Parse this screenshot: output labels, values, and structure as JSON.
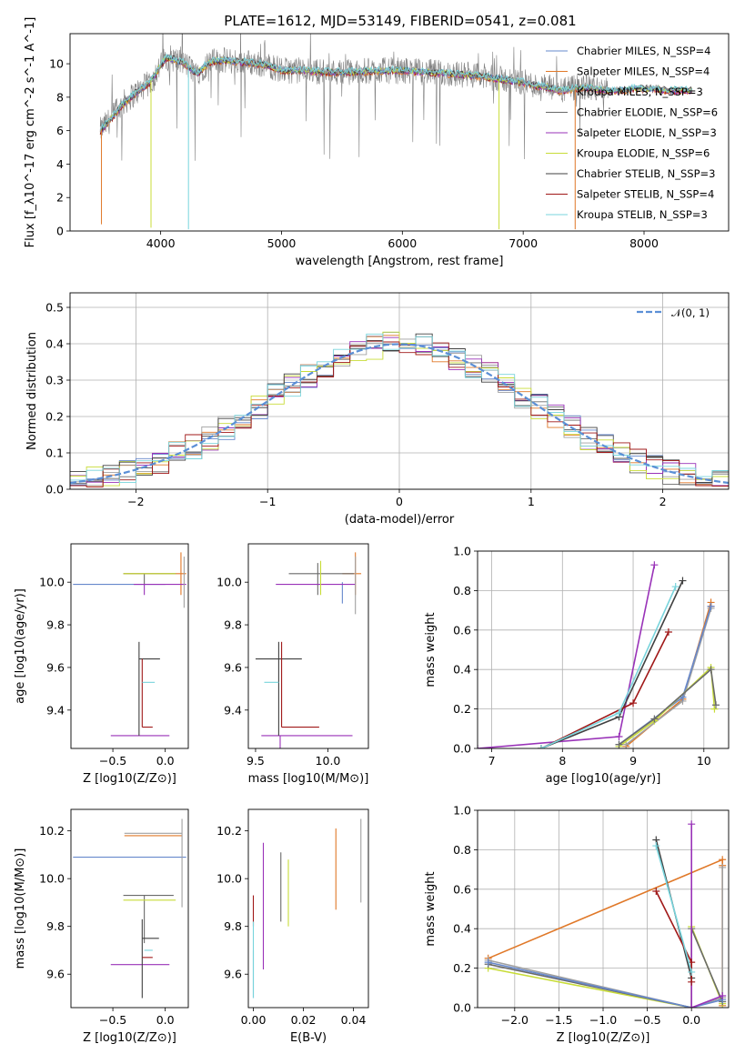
{
  "colors": [
    "#6688cc",
    "#e07828",
    "#a0a0a0",
    "#6a6a6a",
    "#9932b8",
    "#c8dc38",
    "#404040",
    "#a01818",
    "#78d4dc"
  ],
  "grey_spectrum_color": "#808080",
  "chart_data": [
    {
      "id": "spectrum",
      "type": "line",
      "title": "PLATE=1612, MJD=53149, FIBERID=0541, z=0.081",
      "xlabel": "wavelength [Angstrom, rest frame]",
      "ylabel": "Flux [f_λ10^-17 erg cm^-2 s^-1 A^-1]",
      "xlim": [
        3250,
        8700
      ],
      "ylim": [
        0,
        11.8
      ],
      "xticks": [
        "4000",
        "5000",
        "6000",
        "7000",
        "8000"
      ],
      "yticks": [
        "0",
        "2",
        "4",
        "6",
        "8",
        "10"
      ],
      "legend_position": "upper-right",
      "series": [
        {
          "name": "Chabrier MILES, N_SSP=4"
        },
        {
          "name": "Salpeter MILES, N_SSP=4"
        },
        {
          "name": "Kroupa MILES, N_SSP=3"
        },
        {
          "name": "Chabrier ELODIE, N_SSP=6"
        },
        {
          "name": "Salpeter ELODIE, N_SSP=3"
        },
        {
          "name": "Kroupa ELODIE, N_SSP=6"
        },
        {
          "name": "Chabrier STELIB, N_SSP=3"
        },
        {
          "name": "Salpeter STELIB, N_SSP=4"
        },
        {
          "name": "Kroupa STELIB, N_SSP=3"
        }
      ],
      "continuum": {
        "x": [
          3500,
          3550,
          3600,
          3700,
          3800,
          3900,
          4000,
          4050,
          4100,
          4200,
          4300,
          4400,
          4500,
          4700,
          4900,
          5000,
          5200,
          5400,
          5600,
          5800,
          6000,
          6200,
          6400,
          6600,
          6800,
          7000,
          7100,
          7200,
          7300,
          7400,
          7500,
          7600,
          7700,
          7800,
          7900,
          8000,
          8100,
          8200,
          8300,
          8400
        ],
        "y": [
          6.0,
          6.4,
          6.8,
          7.7,
          8.3,
          8.8,
          9.9,
          10.4,
          10.3,
          10.0,
          9.4,
          10.1,
          10.2,
          10.1,
          9.9,
          9.6,
          9.6,
          9.5,
          9.5,
          9.6,
          9.6,
          9.5,
          9.4,
          9.3,
          9.1,
          8.9,
          8.7,
          8.6,
          8.4,
          8.5,
          8.6,
          8.5,
          8.4,
          8.4,
          8.5,
          8.5,
          8.5,
          8.4,
          8.4,
          8.4
        ]
      },
      "grey_spectrum_range": [
        3500,
        7700
      ]
    },
    {
      "id": "residuals",
      "type": "histogram",
      "xlabel": "(data-model)/error",
      "ylabel": "Normed distribution",
      "xlim": [
        -2.5,
        2.5
      ],
      "ylim": [
        0,
        0.54
      ],
      "xticks": [
        "−2",
        "−1",
        "0",
        "1",
        "2"
      ],
      "yticks": [
        "0.0",
        "0.1",
        "0.2",
        "0.3",
        "0.4",
        "0.5"
      ],
      "grid": true,
      "legend": "𝒩(0, 1)",
      "legend_position": "upper-right",
      "bin_width": 0.125
    },
    {
      "id": "age_vs_Z",
      "type": "errorbar",
      "xlabel": "Z [log10(Z/Z⊙)]",
      "ylabel": "age  [log10(age/yr)]",
      "xlim": [
        -0.9,
        0.22
      ],
      "ylim": [
        9.22,
        10.18
      ],
      "xticks": [
        "−0.5",
        "0.0"
      ],
      "yticks": [
        "9.4",
        "9.6",
        "9.8",
        "10.0"
      ],
      "points": [
        {
          "x": -0.2,
          "y": 9.99,
          "xerr": [
            0.68,
            0.2
          ],
          "yerr": [
            0.0,
            0.0
          ],
          "c": 0
        },
        {
          "x": 0.15,
          "y": 10.04,
          "xerr": [
            0.55,
            0.05
          ],
          "yerr": [
            0.1,
            0.1
          ],
          "c": 1
        },
        {
          "x": -0.2,
          "y": 10.04,
          "xerr": [
            0.2,
            0.3
          ],
          "yerr": [
            0.05,
            0.0
          ],
          "c": 3
        },
        {
          "x": -0.2,
          "y": 9.99,
          "xerr": [
            0.1,
            0.4
          ],
          "yerr": [
            0.05,
            0.0
          ],
          "c": 4
        },
        {
          "x": -0.22,
          "y": 9.28,
          "xerr": [
            0.3,
            0.26
          ],
          "yerr": [
            0.0,
            0.0
          ],
          "c": 4
        },
        {
          "x": -0.25,
          "y": 9.64,
          "xerr": [
            0.0,
            0.2
          ],
          "yerr": [
            0.36,
            0.08
          ],
          "c": 6
        },
        {
          "x": -0.22,
          "y": 9.32,
          "xerr": [
            0.0,
            0.1
          ],
          "yerr": [
            0.0,
            0.32
          ],
          "c": 7
        },
        {
          "x": -0.22,
          "y": 9.53,
          "xerr": [
            0.0,
            0.12
          ],
          "yerr": [
            0.0,
            0.0
          ],
          "c": 8
        },
        {
          "x": 0.18,
          "y": 10.0,
          "xerr": [
            0.0,
            0.0
          ],
          "yerr": [
            0.12,
            0.12
          ],
          "c": 2
        },
        {
          "x": -0.2,
          "y": 10.04,
          "xerr": [
            0.2,
            0.3
          ],
          "yerr": [
            0.0,
            0.0
          ],
          "c": 5
        }
      ]
    },
    {
      "id": "age_vs_mass",
      "type": "errorbar",
      "xlabel": "mass [log10(M/M⊙)]",
      "ylabel": "",
      "xlim": [
        9.45,
        10.28
      ],
      "ylim": [
        9.22,
        10.18
      ],
      "xticks": [
        "9.5",
        "10.0"
      ],
      "yticks": [
        "9.4",
        "9.6",
        "9.8",
        "10.0"
      ],
      "points": [
        {
          "x": 10.1,
          "y": 10.0,
          "xerr": [
            0.0,
            0.0
          ],
          "yerr": [
            0.1,
            0.0
          ],
          "c": 0
        },
        {
          "x": 10.19,
          "y": 10.04,
          "xerr": [
            0.09,
            0.04
          ],
          "yerr": [
            0.1,
            0.1
          ],
          "c": 1
        },
        {
          "x": 9.93,
          "y": 10.04,
          "xerr": [
            0.2,
            0.25
          ],
          "yerr": [
            0.1,
            0.05
          ],
          "c": 3
        },
        {
          "x": 9.64,
          "y": 9.99,
          "xerr": [
            0.0,
            0.55
          ],
          "yerr": [
            0.0,
            0.0
          ],
          "c": 4
        },
        {
          "x": 9.67,
          "y": 9.28,
          "xerr": [
            0.13,
            0.5
          ],
          "yerr": [
            0.71,
            0.0
          ],
          "c": 4
        },
        {
          "x": 9.66,
          "y": 9.64,
          "xerr": [
            0.16,
            0.16
          ],
          "yerr": [
            0.36,
            0.08
          ],
          "c": 6
        },
        {
          "x": 9.68,
          "y": 9.32,
          "xerr": [
            0.0,
            0.26
          ],
          "yerr": [
            0.0,
            0.4
          ],
          "c": 7
        },
        {
          "x": 9.66,
          "y": 9.53,
          "xerr": [
            0.1,
            0.0
          ],
          "yerr": [
            0.0,
            0.0
          ],
          "c": 8
        },
        {
          "x": 9.95,
          "y": 10.04,
          "xerr": [
            0.0,
            0.0
          ],
          "yerr": [
            0.1,
            0.06
          ],
          "c": 5
        },
        {
          "x": 10.19,
          "y": 10.0,
          "xerr": [
            0.0,
            0.0
          ],
          "yerr": [
            0.15,
            0.12
          ],
          "c": 2
        }
      ]
    },
    {
      "id": "mass_weight_vs_age",
      "type": "line",
      "xlabel": "age  [log10(age/yr)]",
      "ylabel": "mass weight",
      "xlim": [
        6.8,
        10.35
      ],
      "ylim": [
        0,
        1.0
      ],
      "xticks": [
        "7",
        "8",
        "9",
        "10"
      ],
      "yticks": [
        "0.0",
        "0.2",
        "0.4",
        "0.6",
        "0.8",
        "1.0"
      ],
      "grid": true,
      "series": [
        {
          "c": 1,
          "x": [
            8.9,
            9.7,
            10.1,
            10.1
          ],
          "y": [
            0.01,
            0.25,
            0.74,
            0.72
          ]
        },
        {
          "c": 2,
          "x": [
            8.9,
            9.7,
            10.1
          ],
          "y": [
            0.02,
            0.24,
            0.71
          ]
        },
        {
          "c": 0,
          "x": [
            8.8,
            9.7,
            10.1
          ],
          "y": [
            0.02,
            0.26,
            0.72
          ]
        },
        {
          "c": 5,
          "x": [
            8.8,
            9.3,
            10.1,
            10.15
          ],
          "y": [
            0.01,
            0.14,
            0.41,
            0.2
          ]
        },
        {
          "c": 3,
          "x": [
            8.8,
            9.3,
            10.1,
            10.17
          ],
          "y": [
            0.02,
            0.15,
            0.4,
            0.22
          ]
        },
        {
          "c": 4,
          "x": [
            6.8,
            8.8,
            9.3
          ],
          "y": [
            0.0,
            0.06,
            0.93
          ]
        },
        {
          "c": 6,
          "x": [
            7.7,
            8.8,
            9.7
          ],
          "y": [
            0.0,
            0.16,
            0.85
          ]
        },
        {
          "c": 7,
          "x": [
            7.7,
            9.0,
            9.5
          ],
          "y": [
            0.0,
            0.23,
            0.59
          ]
        },
        {
          "c": 8,
          "x": [
            7.7,
            8.8,
            9.6
          ],
          "y": [
            0.0,
            0.18,
            0.82
          ]
        }
      ]
    },
    {
      "id": "mass_vs_Z",
      "type": "errorbar",
      "xlabel": "Z [log10(Z/Z⊙)]",
      "ylabel": "mass [log10(M/M⊙)]",
      "xlim": [
        -0.9,
        0.22
      ],
      "ylim": [
        9.46,
        10.29
      ],
      "xticks": [
        "−0.5",
        "0.0"
      ],
      "yticks": [
        "9.6",
        "9.8",
        "10.0",
        "10.2"
      ],
      "points": [
        {
          "x": -0.2,
          "y": 10.09,
          "xerr": [
            0.68,
            0.4
          ],
          "yerr": [
            0.0,
            0.0
          ],
          "c": 0
        },
        {
          "x": 0.16,
          "y": 10.18,
          "xerr": [
            0.55,
            0.0
          ],
          "yerr": [
            0.0,
            0.0
          ],
          "c": 1
        },
        {
          "x": 0.16,
          "y": 10.19,
          "xerr": [
            0.55,
            0.0
          ],
          "yerr": [
            0.31,
            0.06
          ],
          "c": 2
        },
        {
          "x": -0.2,
          "y": 9.93,
          "xerr": [
            0.2,
            0.28
          ],
          "yerr": [
            0.2,
            0.0
          ],
          "c": 3
        },
        {
          "x": -0.22,
          "y": 9.64,
          "xerr": [
            0.3,
            0.26
          ],
          "yerr": [
            0.0,
            0.0
          ],
          "c": 4
        },
        {
          "x": -0.22,
          "y": 9.75,
          "xerr": [
            0.0,
            0.16
          ],
          "yerr": [
            0.25,
            0.08
          ],
          "c": 6
        },
        {
          "x": -0.22,
          "y": 9.67,
          "xerr": [
            0.0,
            0.1
          ],
          "yerr": [
            0.0,
            0.0
          ],
          "c": 7
        },
        {
          "x": -0.2,
          "y": 9.7,
          "xerr": [
            0.0,
            0.08
          ],
          "yerr": [
            0.0,
            0.0
          ],
          "c": 8
        },
        {
          "x": -0.2,
          "y": 9.91,
          "xerr": [
            0.2,
            0.3
          ],
          "yerr": [
            0.0,
            0.0
          ],
          "c": 5
        }
      ]
    },
    {
      "id": "mass_vs_ebv",
      "type": "errorbar",
      "xlabel": "E(B-V)",
      "ylabel": "",
      "xlim": [
        -0.002,
        0.046
      ],
      "ylim": [
        9.46,
        10.29
      ],
      "xticks": [
        "0.00",
        "0.02",
        "0.04"
      ],
      "yticks": [
        "9.6",
        "9.8",
        "10.0",
        "10.2"
      ],
      "points": [
        {
          "x": 0.0,
          "y": 9.6,
          "xerr": [
            0,
            0
          ],
          "yerr": [
            0.1,
            0.1
          ],
          "c": 0
        },
        {
          "x": 0.0,
          "y": 9.85,
          "xerr": [
            0,
            0
          ],
          "yerr": [
            0.05,
            0.08
          ],
          "c": 7
        },
        {
          "x": 0.0,
          "y": 9.65,
          "xerr": [
            0,
            0
          ],
          "yerr": [
            0.15,
            0.17
          ],
          "c": 8
        },
        {
          "x": 0.004,
          "y": 9.88,
          "xerr": [
            0,
            0
          ],
          "yerr": [
            0.26,
            0.27
          ],
          "c": 4
        },
        {
          "x": 0.011,
          "y": 9.95,
          "xerr": [
            0,
            0
          ],
          "yerr": [
            0.13,
            0.16
          ],
          "c": 3
        },
        {
          "x": 0.014,
          "y": 9.93,
          "xerr": [
            0,
            0
          ],
          "yerr": [
            0.13,
            0.15
          ],
          "c": 5
        },
        {
          "x": 0.033,
          "y": 10.05,
          "xerr": [
            0,
            0
          ],
          "yerr": [
            0.18,
            0.16
          ],
          "c": 1
        },
        {
          "x": 0.043,
          "y": 10.07,
          "xerr": [
            0,
            0
          ],
          "yerr": [
            0.17,
            0.18
          ],
          "c": 2
        }
      ]
    },
    {
      "id": "mass_weight_vs_Z",
      "type": "line",
      "xlabel": "Z [log10(Z/Z⊙)]",
      "ylabel": "mass weight",
      "xlim": [
        -2.42,
        0.42
      ],
      "ylim": [
        0,
        1.0
      ],
      "xticks": [
        "−2.0",
        "−1.5",
        "−1.0",
        "−0.5",
        "0.0"
      ],
      "yticks": [
        "0.0",
        "0.2",
        "0.4",
        "0.6",
        "0.8",
        "1.0"
      ],
      "grid": true,
      "series": [
        {
          "c": 1,
          "x": [
            -2.3,
            0.35,
            0.35,
            0.35
          ],
          "y": [
            0.25,
            0.75,
            0.72,
            0.01
          ]
        },
        {
          "c": 2,
          "x": [
            -2.3,
            0.0,
            0.35,
            0.35
          ],
          "y": [
            0.24,
            0.0,
            0.05,
            0.71
          ]
        },
        {
          "c": 5,
          "x": [
            -2.3,
            0.0,
            0.0,
            0.35
          ],
          "y": [
            0.2,
            0.0,
            0.41,
            0.02
          ]
        },
        {
          "c": 3,
          "x": [
            -2.3,
            0.0,
            0.0,
            0.35
          ],
          "y": [
            0.22,
            0.0,
            0.4,
            0.03
          ]
        },
        {
          "c": 0,
          "x": [
            -2.3,
            0.0,
            0.35
          ],
          "y": [
            0.23,
            0.0,
            0.04
          ]
        },
        {
          "c": 4,
          "x": [
            0.0,
            0.0,
            0.35
          ],
          "y": [
            0.93,
            0.0,
            0.06
          ]
        },
        {
          "c": 6,
          "x": [
            -0.4,
            0.0
          ],
          "y": [
            0.85,
            0.15
          ]
        },
        {
          "c": 7,
          "x": [
            -0.4,
            0.0,
            0.0
          ],
          "y": [
            0.59,
            0.23,
            0.13
          ]
        },
        {
          "c": 8,
          "x": [
            -0.4,
            0.0
          ],
          "y": [
            0.82,
            0.18
          ]
        }
      ]
    }
  ]
}
